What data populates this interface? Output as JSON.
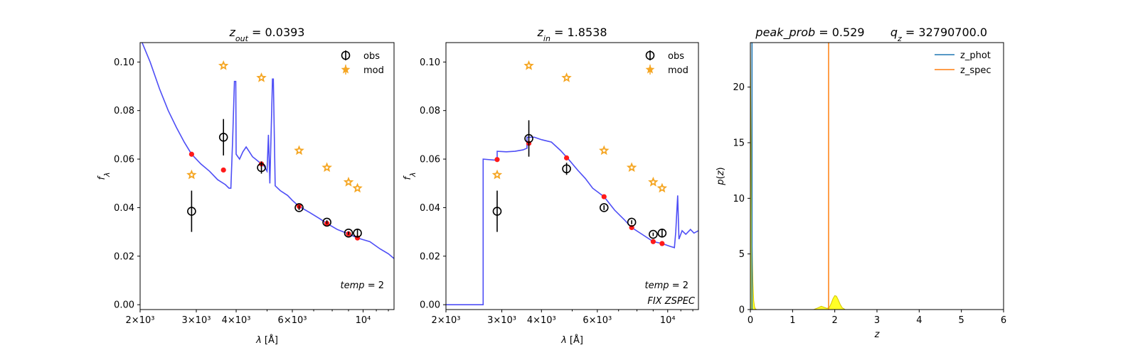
{
  "chart_data": [
    {
      "type": "scatter",
      "title": "z_out = 0.0393",
      "xlabel": "λ [Å]",
      "ylabel": "f_λ",
      "xscale": "log",
      "xlim": [
        2000,
        12500
      ],
      "ylim": [
        -0.002,
        0.108
      ],
      "xticks": [
        {
          "v": 2000,
          "t": "2×10³"
        },
        {
          "v": 3000,
          "t": "3×10³"
        },
        {
          "v": 4000,
          "t": "4×10³"
        },
        {
          "v": 6000,
          "t": "6×10³"
        },
        {
          "v": 10000,
          "t": "10⁴"
        }
      ],
      "yticks": [
        {
          "v": 0.0,
          "t": "0.00"
        },
        {
          "v": 0.02,
          "t": "0.02"
        },
        {
          "v": 0.04,
          "t": "0.04"
        },
        {
          "v": 0.06,
          "t": "0.06"
        },
        {
          "v": 0.08,
          "t": "0.08"
        },
        {
          "v": 0.1,
          "t": "0.10"
        }
      ],
      "legend": {
        "position": "top-right",
        "entries": [
          "obs",
          "mod"
        ]
      },
      "annotations": [
        "temp = 2"
      ],
      "colors": {
        "model_line": "#3b3bf5",
        "obs": "#000000",
        "model_points": "#ff1a1a",
        "mod": "#f5a623"
      },
      "obs": [
        {
          "x": 2900,
          "y": 0.0385,
          "err": 0.0085
        },
        {
          "x": 3650,
          "y": 0.069,
          "err": 0.0075
        },
        {
          "x": 4800,
          "y": 0.0565,
          "err": 0.0025
        },
        {
          "x": 6300,
          "y": 0.04,
          "err": 0.001
        },
        {
          "x": 7700,
          "y": 0.034,
          "err": 0.0008
        },
        {
          "x": 9000,
          "y": 0.0295,
          "err": 0.0007
        },
        {
          "x": 9600,
          "y": 0.0295,
          "err": 0.0018
        }
      ],
      "model_points": [
        {
          "x": 2900,
          "y": 0.062
        },
        {
          "x": 3650,
          "y": 0.0555
        },
        {
          "x": 4800,
          "y": 0.058
        },
        {
          "x": 6300,
          "y": 0.0405
        },
        {
          "x": 7700,
          "y": 0.0335
        },
        {
          "x": 9000,
          "y": 0.0292
        },
        {
          "x": 9600,
          "y": 0.0275
        }
      ],
      "mod": [
        {
          "x": 2900,
          "y": 0.0535
        },
        {
          "x": 3650,
          "y": 0.0985
        },
        {
          "x": 4800,
          "y": 0.0935
        },
        {
          "x": 6300,
          "y": 0.0635
        },
        {
          "x": 7700,
          "y": 0.0565
        },
        {
          "x": 9000,
          "y": 0.0505
        },
        {
          "x": 9600,
          "y": 0.048
        }
      ],
      "model_line": [
        [
          2000,
          0.11
        ],
        [
          2150,
          0.1
        ],
        [
          2300,
          0.089
        ],
        [
          2450,
          0.08
        ],
        [
          2600,
          0.073
        ],
        [
          2750,
          0.067
        ],
        [
          2900,
          0.062
        ],
        [
          3100,
          0.058
        ],
        [
          3300,
          0.055
        ],
        [
          3500,
          0.0515
        ],
        [
          3700,
          0.0495
        ],
        [
          3800,
          0.048
        ],
        [
          3850,
          0.048
        ],
        [
          3900,
          0.068
        ],
        [
          3950,
          0.092
        ],
        [
          3990,
          0.092
        ],
        [
          4000,
          0.062
        ],
        [
          4100,
          0.06
        ],
        [
          4200,
          0.063
        ],
        [
          4300,
          0.065
        ],
        [
          4400,
          0.063
        ],
        [
          4500,
          0.061
        ],
        [
          4600,
          0.06
        ],
        [
          4700,
          0.059
        ],
        [
          4800,
          0.058
        ],
        [
          4900,
          0.057
        ],
        [
          5000,
          0.055
        ],
        [
          5050,
          0.07
        ],
        [
          5100,
          0.05
        ],
        [
          5200,
          0.093
        ],
        [
          5230,
          0.093
        ],
        [
          5300,
          0.049
        ],
        [
          5500,
          0.047
        ],
        [
          5800,
          0.045
        ],
        [
          6000,
          0.043
        ],
        [
          6300,
          0.0405
        ],
        [
          6800,
          0.038
        ],
        [
          7300,
          0.0355
        ],
        [
          7700,
          0.0335
        ],
        [
          8300,
          0.031
        ],
        [
          9000,
          0.0292
        ],
        [
          9600,
          0.0275
        ],
        [
          10500,
          0.026
        ],
        [
          11300,
          0.023
        ],
        [
          12000,
          0.021
        ],
        [
          12500,
          0.019
        ]
      ]
    },
    {
      "type": "scatter",
      "title": "z_in = 1.8538",
      "xlabel": "λ [Å]",
      "ylabel": "f_λ",
      "xscale": "log",
      "xlim": [
        2000,
        12500
      ],
      "ylim": [
        -0.002,
        0.108
      ],
      "xticks": [
        {
          "v": 2000,
          "t": "2×10³"
        },
        {
          "v": 3000,
          "t": "3×10³"
        },
        {
          "v": 4000,
          "t": "4×10³"
        },
        {
          "v": 6000,
          "t": "6×10³"
        },
        {
          "v": 10000,
          "t": "10⁴"
        }
      ],
      "yticks": [
        {
          "v": 0.0,
          "t": "0.00"
        },
        {
          "v": 0.02,
          "t": "0.02"
        },
        {
          "v": 0.04,
          "t": "0.04"
        },
        {
          "v": 0.06,
          "t": "0.06"
        },
        {
          "v": 0.08,
          "t": "0.08"
        },
        {
          "v": 0.1,
          "t": "0.10"
        }
      ],
      "legend": {
        "position": "top-right",
        "entries": [
          "obs",
          "mod"
        ]
      },
      "annotations": [
        "temp = 2",
        "FIX ZSPEC"
      ],
      "colors": {
        "model_line": "#3b3bf5",
        "obs": "#000000",
        "model_points": "#ff1a1a",
        "mod": "#f5a623"
      },
      "obs": [
        {
          "x": 2900,
          "y": 0.0385,
          "err": 0.0085
        },
        {
          "x": 3650,
          "y": 0.0685,
          "err": 0.0075
        },
        {
          "x": 4800,
          "y": 0.056,
          "err": 0.0025
        },
        {
          "x": 6300,
          "y": 0.04,
          "err": 0.001
        },
        {
          "x": 7700,
          "y": 0.034,
          "err": 0.0008
        },
        {
          "x": 9000,
          "y": 0.029,
          "err": 0.0007
        },
        {
          "x": 9600,
          "y": 0.0295,
          "err": 0.0018
        }
      ],
      "model_points": [
        {
          "x": 2900,
          "y": 0.0598
        },
        {
          "x": 3650,
          "y": 0.0665
        },
        {
          "x": 4800,
          "y": 0.0605
        },
        {
          "x": 6300,
          "y": 0.0445
        },
        {
          "x": 7700,
          "y": 0.0318
        },
        {
          "x": 9000,
          "y": 0.026
        },
        {
          "x": 9600,
          "y": 0.0252
        }
      ],
      "mod": [
        {
          "x": 2900,
          "y": 0.0535
        },
        {
          "x": 3650,
          "y": 0.0985
        },
        {
          "x": 4800,
          "y": 0.0935
        },
        {
          "x": 6300,
          "y": 0.0635
        },
        {
          "x": 7700,
          "y": 0.0565
        },
        {
          "x": 9000,
          "y": 0.0505
        },
        {
          "x": 9600,
          "y": 0.048
        }
      ],
      "model_line": [
        [
          2000,
          0.0
        ],
        [
          2620,
          0.0
        ],
        [
          2620,
          0.06
        ],
        [
          2900,
          0.0595
        ],
        [
          2900,
          0.0632
        ],
        [
          3100,
          0.063
        ],
        [
          3300,
          0.0632
        ],
        [
          3500,
          0.0638
        ],
        [
          3600,
          0.0645
        ],
        [
          3600,
          0.069
        ],
        [
          3800,
          0.069
        ],
        [
          4000,
          0.068
        ],
        [
          4300,
          0.067
        ],
        [
          4600,
          0.0635
        ],
        [
          4900,
          0.0595
        ],
        [
          5200,
          0.0555
        ],
        [
          5500,
          0.052
        ],
        [
          5800,
          0.048
        ],
        [
          6300,
          0.0445
        ],
        [
          6800,
          0.039
        ],
        [
          7300,
          0.035
        ],
        [
          7700,
          0.0318
        ],
        [
          8300,
          0.029
        ],
        [
          9000,
          0.026
        ],
        [
          9600,
          0.0252
        ],
        [
          10200,
          0.024
        ],
        [
          10500,
          0.0235
        ],
        [
          10600,
          0.03
        ],
        [
          10750,
          0.045
        ],
        [
          10850,
          0.027
        ],
        [
          11100,
          0.0305
        ],
        [
          11400,
          0.029
        ],
        [
          11800,
          0.031
        ],
        [
          12100,
          0.0295
        ],
        [
          12500,
          0.0305
        ]
      ]
    },
    {
      "type": "line",
      "title_left": "peak_prob = 0.529",
      "title_right": "q_z = 32790700.0",
      "xlabel": "z",
      "ylabel": "p(z)",
      "xlim": [
        0,
        6
      ],
      "ylim": [
        0,
        24
      ],
      "xticks": [
        {
          "v": 0,
          "t": "0"
        },
        {
          "v": 1,
          "t": "1"
        },
        {
          "v": 2,
          "t": "2"
        },
        {
          "v": 3,
          "t": "3"
        },
        {
          "v": 4,
          "t": "4"
        },
        {
          "v": 5,
          "t": "5"
        },
        {
          "v": 6,
          "t": "6"
        }
      ],
      "yticks": [
        {
          "v": 0,
          "t": "0"
        },
        {
          "v": 5,
          "t": "5"
        },
        {
          "v": 10,
          "t": "10"
        },
        {
          "v": 15,
          "t": "15"
        },
        {
          "v": 20,
          "t": "20"
        }
      ],
      "legend": {
        "position": "top-right",
        "entries": [
          "z_phot",
          "z_spec"
        ]
      },
      "colors": {
        "z_phot": "#1f77b4",
        "z_spec": "#ff7f0e",
        "pz_fill": "#ffff00",
        "pz_line": "#d4c400"
      },
      "z_phot": 0.0393,
      "z_spec": 1.8538,
      "pz_curve": [
        [
          0.0,
          24
        ],
        [
          0.02,
          13
        ],
        [
          0.04,
          6
        ],
        [
          0.06,
          2.5
        ],
        [
          0.08,
          0.8
        ],
        [
          0.1,
          0.25
        ],
        [
          0.12,
          0.05
        ],
        [
          0.15,
          0.0
        ],
        [
          1.5,
          0.0
        ],
        [
          1.6,
          0.15
        ],
        [
          1.68,
          0.3
        ],
        [
          1.75,
          0.2
        ],
        [
          1.82,
          0.1
        ],
        [
          1.88,
          0.25
        ],
        [
          1.92,
          0.6
        ],
        [
          1.96,
          1.0
        ],
        [
          2.0,
          1.25
        ],
        [
          2.04,
          1.2
        ],
        [
          2.08,
          0.9
        ],
        [
          2.13,
          0.45
        ],
        [
          2.18,
          0.15
        ],
        [
          2.25,
          0.0
        ],
        [
          5.0,
          0.0
        ]
      ]
    }
  ]
}
